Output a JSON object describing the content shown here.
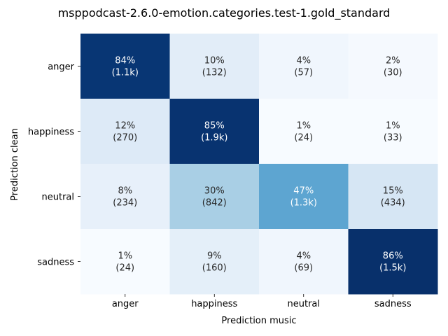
{
  "chart_data": {
    "type": "heatmap",
    "title": "msppodcast-2.6.0-emotion.categories.test-1.gold_standard",
    "xlabel": "Prediction music",
    "ylabel": "Prediction clean",
    "x_categories": [
      "anger",
      "happiness",
      "neutral",
      "sadness"
    ],
    "y_categories": [
      "anger",
      "happiness",
      "neutral",
      "sadness"
    ],
    "colormap": "Blues",
    "grid": false,
    "colorbar": false,
    "percentages": [
      [
        84,
        10,
        4,
        2
      ],
      [
        12,
        85,
        1,
        1
      ],
      [
        8,
        30,
        47,
        15
      ],
      [
        1,
        9,
        4,
        86
      ]
    ],
    "counts": [
      [
        "1.1k",
        "132",
        "57",
        "30"
      ],
      [
        "270",
        "1.9k",
        "24",
        "33"
      ],
      [
        "234",
        "842",
        "1.3k",
        "434"
      ],
      [
        "24",
        "160",
        "69",
        "1.5k"
      ]
    ],
    "cell_labels": [
      [
        "84%\n(1.1k)",
        "10%\n(132)",
        "4%\n(57)",
        "2%\n(30)"
      ],
      [
        "12%\n(270)",
        "85%\n(1.9k)",
        "1%\n(24)",
        "1%\n(33)"
      ],
      [
        "8%\n(234)",
        "30%\n(842)",
        "47%\n(1.3k)",
        "15%\n(434)"
      ],
      [
        "1%\n(24)",
        "9%\n(160)",
        "4%\n(69)",
        "86%\n(1.5k)"
      ]
    ]
  }
}
